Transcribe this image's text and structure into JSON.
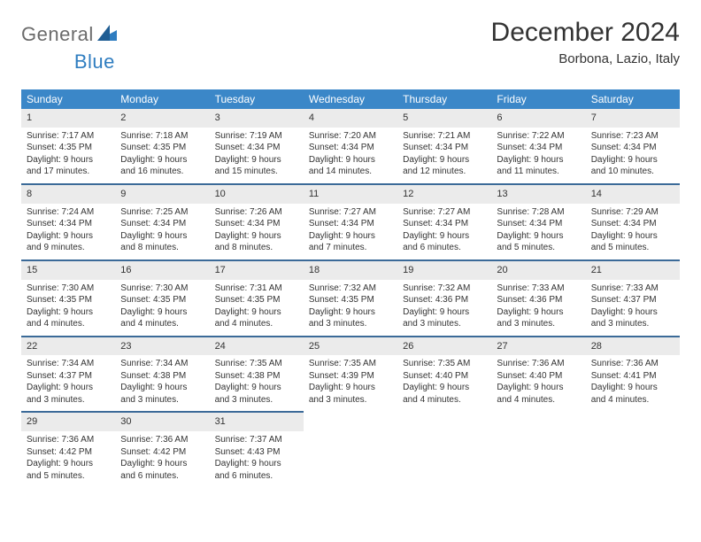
{
  "logo": {
    "general": "General",
    "blue": "Blue"
  },
  "title": "December 2024",
  "location": "Borbona, Lazio, Italy",
  "colors": {
    "header_bg": "#3b87c8",
    "header_text": "#ffffff",
    "row_border": "#3b6a98",
    "daybar_bg": "#ebebeb",
    "text": "#333333",
    "logo_gray": "#6b6b6b",
    "logo_blue": "#2f7dc0",
    "page_bg": "#ffffff"
  },
  "typography": {
    "title_fontsize": 30,
    "location_fontsize": 15,
    "th_fontsize": 12,
    "cell_fontsize": 10,
    "daynum_fontsize": 11,
    "logo_fontsize": 22
  },
  "days_of_week": [
    "Sunday",
    "Monday",
    "Tuesday",
    "Wednesday",
    "Thursday",
    "Friday",
    "Saturday"
  ],
  "weeks": [
    [
      {
        "n": "1",
        "sr": "Sunrise: 7:17 AM",
        "ss": "Sunset: 4:35 PM",
        "d1": "Daylight: 9 hours",
        "d2": "and 17 minutes."
      },
      {
        "n": "2",
        "sr": "Sunrise: 7:18 AM",
        "ss": "Sunset: 4:35 PM",
        "d1": "Daylight: 9 hours",
        "d2": "and 16 minutes."
      },
      {
        "n": "3",
        "sr": "Sunrise: 7:19 AM",
        "ss": "Sunset: 4:34 PM",
        "d1": "Daylight: 9 hours",
        "d2": "and 15 minutes."
      },
      {
        "n": "4",
        "sr": "Sunrise: 7:20 AM",
        "ss": "Sunset: 4:34 PM",
        "d1": "Daylight: 9 hours",
        "d2": "and 14 minutes."
      },
      {
        "n": "5",
        "sr": "Sunrise: 7:21 AM",
        "ss": "Sunset: 4:34 PM",
        "d1": "Daylight: 9 hours",
        "d2": "and 12 minutes."
      },
      {
        "n": "6",
        "sr": "Sunrise: 7:22 AM",
        "ss": "Sunset: 4:34 PM",
        "d1": "Daylight: 9 hours",
        "d2": "and 11 minutes."
      },
      {
        "n": "7",
        "sr": "Sunrise: 7:23 AM",
        "ss": "Sunset: 4:34 PM",
        "d1": "Daylight: 9 hours",
        "d2": "and 10 minutes."
      }
    ],
    [
      {
        "n": "8",
        "sr": "Sunrise: 7:24 AM",
        "ss": "Sunset: 4:34 PM",
        "d1": "Daylight: 9 hours",
        "d2": "and 9 minutes."
      },
      {
        "n": "9",
        "sr": "Sunrise: 7:25 AM",
        "ss": "Sunset: 4:34 PM",
        "d1": "Daylight: 9 hours",
        "d2": "and 8 minutes."
      },
      {
        "n": "10",
        "sr": "Sunrise: 7:26 AM",
        "ss": "Sunset: 4:34 PM",
        "d1": "Daylight: 9 hours",
        "d2": "and 8 minutes."
      },
      {
        "n": "11",
        "sr": "Sunrise: 7:27 AM",
        "ss": "Sunset: 4:34 PM",
        "d1": "Daylight: 9 hours",
        "d2": "and 7 minutes."
      },
      {
        "n": "12",
        "sr": "Sunrise: 7:27 AM",
        "ss": "Sunset: 4:34 PM",
        "d1": "Daylight: 9 hours",
        "d2": "and 6 minutes."
      },
      {
        "n": "13",
        "sr": "Sunrise: 7:28 AM",
        "ss": "Sunset: 4:34 PM",
        "d1": "Daylight: 9 hours",
        "d2": "and 5 minutes."
      },
      {
        "n": "14",
        "sr": "Sunrise: 7:29 AM",
        "ss": "Sunset: 4:34 PM",
        "d1": "Daylight: 9 hours",
        "d2": "and 5 minutes."
      }
    ],
    [
      {
        "n": "15",
        "sr": "Sunrise: 7:30 AM",
        "ss": "Sunset: 4:35 PM",
        "d1": "Daylight: 9 hours",
        "d2": "and 4 minutes."
      },
      {
        "n": "16",
        "sr": "Sunrise: 7:30 AM",
        "ss": "Sunset: 4:35 PM",
        "d1": "Daylight: 9 hours",
        "d2": "and 4 minutes."
      },
      {
        "n": "17",
        "sr": "Sunrise: 7:31 AM",
        "ss": "Sunset: 4:35 PM",
        "d1": "Daylight: 9 hours",
        "d2": "and 4 minutes."
      },
      {
        "n": "18",
        "sr": "Sunrise: 7:32 AM",
        "ss": "Sunset: 4:35 PM",
        "d1": "Daylight: 9 hours",
        "d2": "and 3 minutes."
      },
      {
        "n": "19",
        "sr": "Sunrise: 7:32 AM",
        "ss": "Sunset: 4:36 PM",
        "d1": "Daylight: 9 hours",
        "d2": "and 3 minutes."
      },
      {
        "n": "20",
        "sr": "Sunrise: 7:33 AM",
        "ss": "Sunset: 4:36 PM",
        "d1": "Daylight: 9 hours",
        "d2": "and 3 minutes."
      },
      {
        "n": "21",
        "sr": "Sunrise: 7:33 AM",
        "ss": "Sunset: 4:37 PM",
        "d1": "Daylight: 9 hours",
        "d2": "and 3 minutes."
      }
    ],
    [
      {
        "n": "22",
        "sr": "Sunrise: 7:34 AM",
        "ss": "Sunset: 4:37 PM",
        "d1": "Daylight: 9 hours",
        "d2": "and 3 minutes."
      },
      {
        "n": "23",
        "sr": "Sunrise: 7:34 AM",
        "ss": "Sunset: 4:38 PM",
        "d1": "Daylight: 9 hours",
        "d2": "and 3 minutes."
      },
      {
        "n": "24",
        "sr": "Sunrise: 7:35 AM",
        "ss": "Sunset: 4:38 PM",
        "d1": "Daylight: 9 hours",
        "d2": "and 3 minutes."
      },
      {
        "n": "25",
        "sr": "Sunrise: 7:35 AM",
        "ss": "Sunset: 4:39 PM",
        "d1": "Daylight: 9 hours",
        "d2": "and 3 minutes."
      },
      {
        "n": "26",
        "sr": "Sunrise: 7:35 AM",
        "ss": "Sunset: 4:40 PM",
        "d1": "Daylight: 9 hours",
        "d2": "and 4 minutes."
      },
      {
        "n": "27",
        "sr": "Sunrise: 7:36 AM",
        "ss": "Sunset: 4:40 PM",
        "d1": "Daylight: 9 hours",
        "d2": "and 4 minutes."
      },
      {
        "n": "28",
        "sr": "Sunrise: 7:36 AM",
        "ss": "Sunset: 4:41 PM",
        "d1": "Daylight: 9 hours",
        "d2": "and 4 minutes."
      }
    ],
    [
      {
        "n": "29",
        "sr": "Sunrise: 7:36 AM",
        "ss": "Sunset: 4:42 PM",
        "d1": "Daylight: 9 hours",
        "d2": "and 5 minutes."
      },
      {
        "n": "30",
        "sr": "Sunrise: 7:36 AM",
        "ss": "Sunset: 4:42 PM",
        "d1": "Daylight: 9 hours",
        "d2": "and 6 minutes."
      },
      {
        "n": "31",
        "sr": "Sunrise: 7:37 AM",
        "ss": "Sunset: 4:43 PM",
        "d1": "Daylight: 9 hours",
        "d2": "and 6 minutes."
      },
      null,
      null,
      null,
      null
    ]
  ]
}
